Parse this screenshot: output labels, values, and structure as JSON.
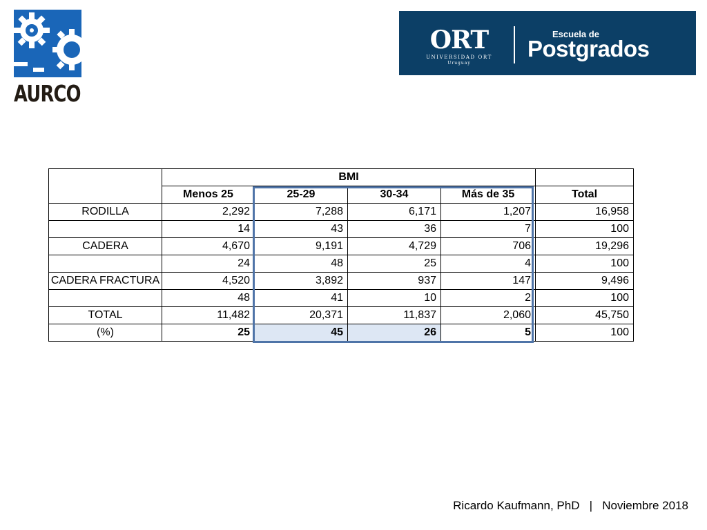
{
  "logos": {
    "aurco": {
      "text": "AURCO",
      "color_blue": "#1a66b8"
    },
    "ort": {
      "word": "ORT",
      "line1": "UNIVERSIDAD ORT",
      "line2": "Uruguay",
      "escuela": "Escuela de",
      "postgrados": "Postgrados",
      "background": "#0c3f66"
    }
  },
  "table": {
    "group_header": "BMI",
    "columns": [
      "Menos 25",
      "25-29",
      "30-34",
      "Más de 35",
      "Total"
    ],
    "rows": [
      {
        "label": "RODILLA",
        "values": [
          "2,292",
          "7,288",
          "6,171",
          "1,207",
          "16,958"
        ]
      },
      {
        "label": "",
        "values": [
          "14",
          "43",
          "36",
          "7",
          "100"
        ]
      },
      {
        "label": "CADERA",
        "values": [
          "4,670",
          "9,191",
          "4,729",
          "706",
          "19,296"
        ]
      },
      {
        "label": "",
        "values": [
          "24",
          "48",
          "25",
          "4",
          "100"
        ]
      },
      {
        "label": "CADERA FRACTURA",
        "values": [
          "4,520",
          "3,892",
          "937",
          "147",
          "9,496"
        ]
      },
      {
        "label": "",
        "values": [
          "48",
          "41",
          "10",
          "2",
          "100"
        ]
      },
      {
        "label": "TOTAL",
        "values": [
          "11,482",
          "20,371",
          "11,837",
          "2,060",
          "45,750"
        ]
      },
      {
        "label": "(%)",
        "values": [
          "25",
          "45",
          "26",
          "5",
          "100"
        ]
      }
    ],
    "highlight_color": "#4f74a8"
  },
  "footer": {
    "author": "Ricardo Kaufmann, PhD",
    "separator": "|",
    "date": "Noviembre 2018"
  }
}
